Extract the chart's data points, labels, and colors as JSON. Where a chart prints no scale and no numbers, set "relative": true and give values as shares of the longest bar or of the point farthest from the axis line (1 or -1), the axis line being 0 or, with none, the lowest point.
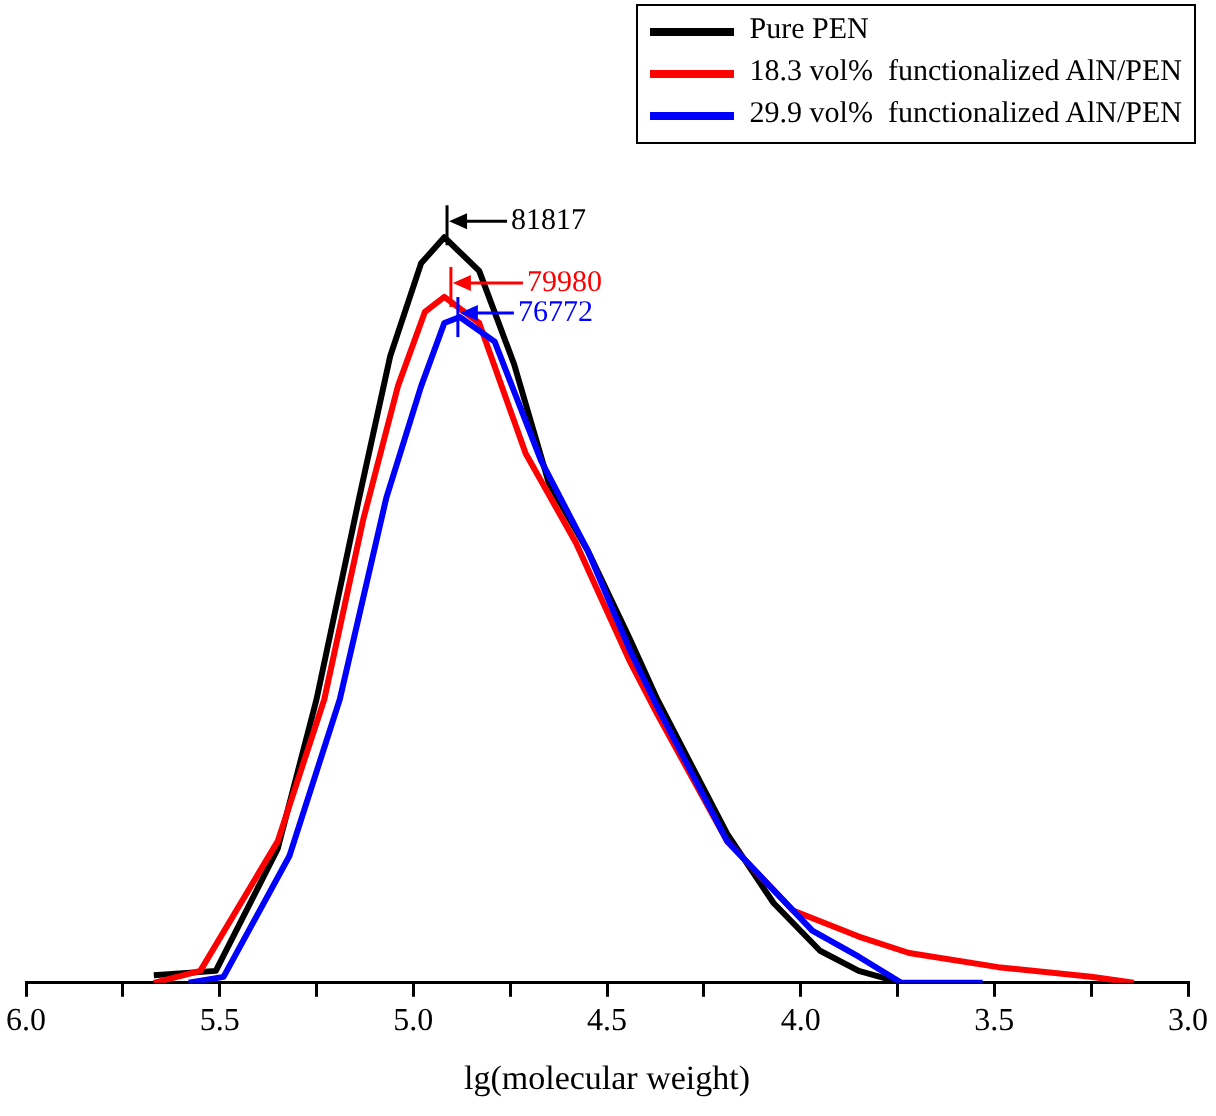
{
  "chart_data": {
    "type": "line",
    "relative": true,
    "xlabel": "lg(molecular weight)",
    "xlim": [
      6,
      3
    ],
    "xticks": [
      {
        "value": 6,
        "label": "6.0"
      },
      {
        "value": 5.75,
        "label": null
      },
      {
        "value": 5.5,
        "label": "5.5"
      },
      {
        "value": 5.25,
        "label": null
      },
      {
        "value": 5,
        "label": "5.0"
      },
      {
        "value": 4.75,
        "label": null
      },
      {
        "value": 4.5,
        "label": "4.5"
      },
      {
        "value": 4.25,
        "label": null
      },
      {
        "value": 4,
        "label": "4.0"
      },
      {
        "value": 3.75,
        "label": null
      },
      {
        "value": 3.5,
        "label": "3.5"
      },
      {
        "value": 3.25,
        "label": null
      },
      {
        "value": 3,
        "label": "3.0"
      }
    ],
    "legend": "top right",
    "grid": false,
    "marker": "none",
    "line_style": "solid",
    "series": [
      {
        "name": "Pure PEN",
        "color": "#000000",
        "x": [
          5.67,
          5.51,
          5.35,
          5.25,
          5.14,
          5.06,
          4.98,
          4.92,
          4.83,
          4.74,
          4.65,
          4.55,
          4.44,
          4.37,
          4.19,
          4.07,
          3.95,
          3.85,
          3.74
        ],
        "values": [
          0.01,
          0.016,
          0.18,
          0.38,
          0.65,
          0.84,
          0.965,
          1,
          0.955,
          0.83,
          0.67,
          0.58,
          0.46,
          0.38,
          0.2,
          0.107,
          0.043,
          0.016,
          0
        ]
      },
      {
        "name": "18.3 vol%  functionalized AlN/PEN",
        "color": "#ff0000",
        "x": [
          5.67,
          5.55,
          5.35,
          5.23,
          5.13,
          5.04,
          4.97,
          4.92,
          4.83,
          4.71,
          4.58,
          4.44,
          4.37,
          4.19,
          4.02,
          3.85,
          3.72,
          3.49,
          3.25,
          3.14
        ],
        "values": [
          0,
          0.016,
          0.19,
          0.38,
          0.62,
          0.8,
          0.9,
          0.92,
          0.885,
          0.71,
          0.59,
          0.43,
          0.36,
          0.19,
          0.097,
          0.062,
          0.04,
          0.021,
          0.008,
          0
        ]
      },
      {
        "name": "29.9 vol%  functionalized AlN/PEN",
        "color": "#0000ff",
        "x": [
          5.58,
          5.49,
          5.32,
          5.19,
          5.07,
          4.98,
          4.92,
          4.88,
          4.79,
          4.67,
          4.55,
          4.44,
          4.37,
          4.19,
          3.97,
          3.85,
          3.74,
          3.53
        ],
        "values": [
          0,
          0.008,
          0.17,
          0.38,
          0.65,
          0.8,
          0.885,
          0.893,
          0.86,
          0.7,
          0.58,
          0.445,
          0.37,
          0.19,
          0.07,
          0.035,
          0,
          0
        ]
      }
    ],
    "annotations": [
      {
        "text": "81817",
        "x": 4.913,
        "y": 1
      },
      {
        "text": "79980",
        "x": 4.903,
        "y": 0.92
      },
      {
        "text": "76772",
        "x": 4.885,
        "y": 0.893
      }
    ]
  }
}
